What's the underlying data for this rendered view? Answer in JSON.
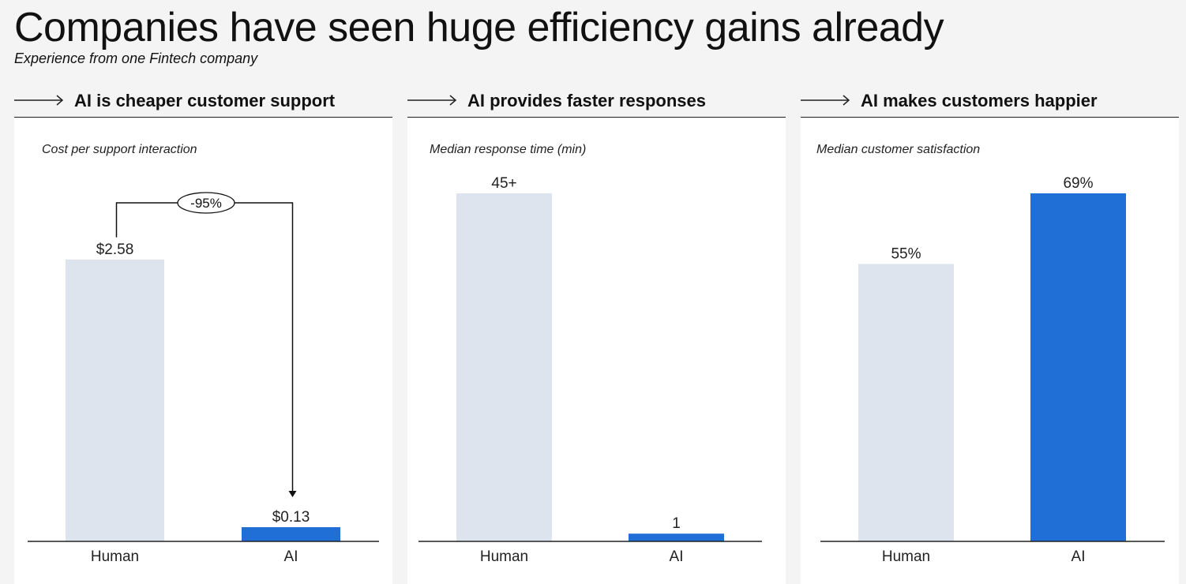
{
  "header": {
    "title": "Companies have seen huge efficiency gains already",
    "subtitle": "Experience from one Fintech company"
  },
  "colors": {
    "human_bar": "#dee4ee",
    "ai_bar": "#1f6fd6",
    "axis": "#222222",
    "panel_bg": "#ffffff",
    "page_bg": "#f4f4f4"
  },
  "panels": [
    {
      "heading": "AI is cheaper customer support",
      "icon": "long-arrow-right-icon"
    },
    {
      "heading": "AI provides faster responses",
      "icon": "long-arrow-right-icon"
    },
    {
      "heading": "AI makes customers happier",
      "icon": "long-arrow-right-icon"
    }
  ],
  "chart_data": [
    {
      "type": "bar",
      "title": "",
      "measure_label": "Cost per support interaction",
      "categories": [
        "Human",
        "AI"
      ],
      "values": [
        2.58,
        0.13
      ],
      "value_labels": [
        "$2.58",
        "$0.13"
      ],
      "ylim": [
        0,
        3.25
      ],
      "annotation": "-95%",
      "grid": false
    },
    {
      "type": "bar",
      "title": "",
      "measure_label": "Median response time (min)",
      "categories": [
        "Human",
        "AI"
      ],
      "values": [
        45,
        1
      ],
      "value_labels": [
        "45+",
        "1"
      ],
      "ylim": [
        0,
        45
      ],
      "grid": false
    },
    {
      "type": "bar",
      "title": "",
      "measure_label": "Median customer satisfaction",
      "categories": [
        "Human",
        "AI"
      ],
      "values": [
        55,
        69
      ],
      "value_labels": [
        "55%",
        "69%"
      ],
      "ylim": [
        0,
        69
      ],
      "grid": false
    }
  ]
}
